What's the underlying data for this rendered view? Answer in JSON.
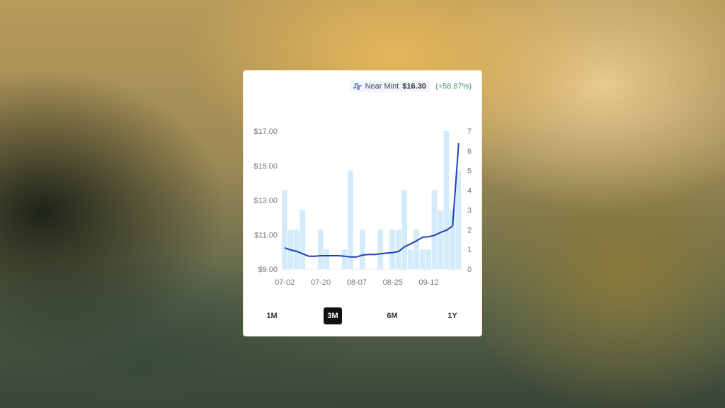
{
  "legend": {
    "icon": "price-line-icon",
    "label": "Near Mint",
    "price": "$16.30",
    "change": "(+58.87%)"
  },
  "ranges": {
    "options": [
      "1M",
      "3M",
      "6M",
      "1Y"
    ],
    "selected": "3M"
  },
  "colors": {
    "line": "#1f3fbf",
    "bars": "#d4ebfb",
    "change": "#3e9a55",
    "selected_range_bg": "#111111"
  },
  "chart_data": {
    "type": "bar+line",
    "x": [
      "07-02",
      "07-05",
      "07-08",
      "07-11",
      "07-14",
      "07-17",
      "07-20",
      "07-23",
      "07-26",
      "07-29",
      "08-01",
      "08-04",
      "08-07",
      "08-10",
      "08-13",
      "08-16",
      "08-19",
      "08-22",
      "08-25",
      "08-28",
      "08-31",
      "09-03",
      "09-06",
      "09-09",
      "09-12",
      "09-15",
      "09-18",
      "09-21",
      "09-24",
      "09-27"
    ],
    "xtick_labels": [
      "07-02",
      "07-20",
      "08-07",
      "08-25",
      "09-12"
    ],
    "series": [
      {
        "type": "line",
        "axis": "left",
        "values": [
          10.23,
          10.11,
          10.03,
          9.89,
          9.75,
          9.75,
          9.78,
          9.78,
          9.78,
          9.78,
          9.75,
          9.71,
          9.71,
          9.82,
          9.85,
          9.85,
          9.89,
          9.93,
          9.96,
          10.03,
          10.3,
          10.47,
          10.65,
          10.85,
          10.88,
          10.96,
          11.13,
          11.26,
          11.5,
          16.3
        ]
      },
      {
        "type": "bar",
        "axis": "right",
        "values": [
          4,
          2,
          2,
          3,
          0,
          0,
          2,
          1,
          0,
          0,
          1,
          5,
          0,
          2,
          0,
          0,
          2,
          0,
          2,
          2,
          4,
          1,
          2,
          1,
          1,
          4,
          3,
          7,
          3,
          5
        ]
      }
    ],
    "left_axis": {
      "range": [
        9,
        17
      ],
      "tick_labels": [
        "$9.00",
        "$11.00",
        "$13.00",
        "$15.00",
        "$17.00"
      ]
    },
    "right_axis": {
      "range": [
        0,
        7
      ],
      "tick_labels": [
        "0",
        "1",
        "2",
        "3",
        "4",
        "5",
        "6",
        "7"
      ]
    },
    "grid": false
  }
}
